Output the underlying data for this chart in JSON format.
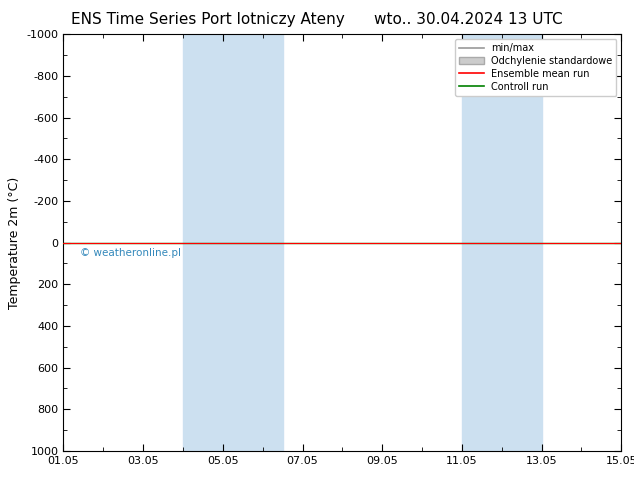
{
  "title_left": "ENS Time Series Port lotniczy Ateny",
  "title_right": "wto.. 30.04.2024 13 UTC",
  "ylabel": "Temperature 2m (°C)",
  "watermark": "© weatheronline.pl",
  "ylim_top": -1000,
  "ylim_bottom": 1000,
  "yticks": [
    -1000,
    -800,
    -600,
    -400,
    -200,
    0,
    200,
    400,
    600,
    800,
    1000
  ],
  "x_start": 0,
  "x_end": 14,
  "xtick_labels": [
    "01.05",
    "03.05",
    "05.05",
    "07.05",
    "09.05",
    "11.05",
    "13.05",
    "15.05"
  ],
  "xtick_positions": [
    0,
    2,
    4,
    6,
    8,
    10,
    12,
    14
  ],
  "shaded_bands": [
    {
      "x_start": 3.0,
      "x_end": 5.5
    },
    {
      "x_start": 10.0,
      "x_end": 12.0
    }
  ],
  "shade_color": "#cce0f0",
  "ensemble_mean_color": "#ff0000",
  "control_run_color": "#008000",
  "minmax_color": "#999999",
  "std_color": "#cccccc",
  "std_edge_color": "#aaaaaa",
  "legend_labels": [
    "min/max",
    "Odchylenie standardowe",
    "Ensemble mean run",
    "Controll run"
  ],
  "bg_color": "#ffffff",
  "plot_bg_color": "#ffffff",
  "border_color": "#000000",
  "title_fontsize": 11,
  "axis_fontsize": 9,
  "tick_fontsize": 8,
  "watermark_color": "#3388bb"
}
